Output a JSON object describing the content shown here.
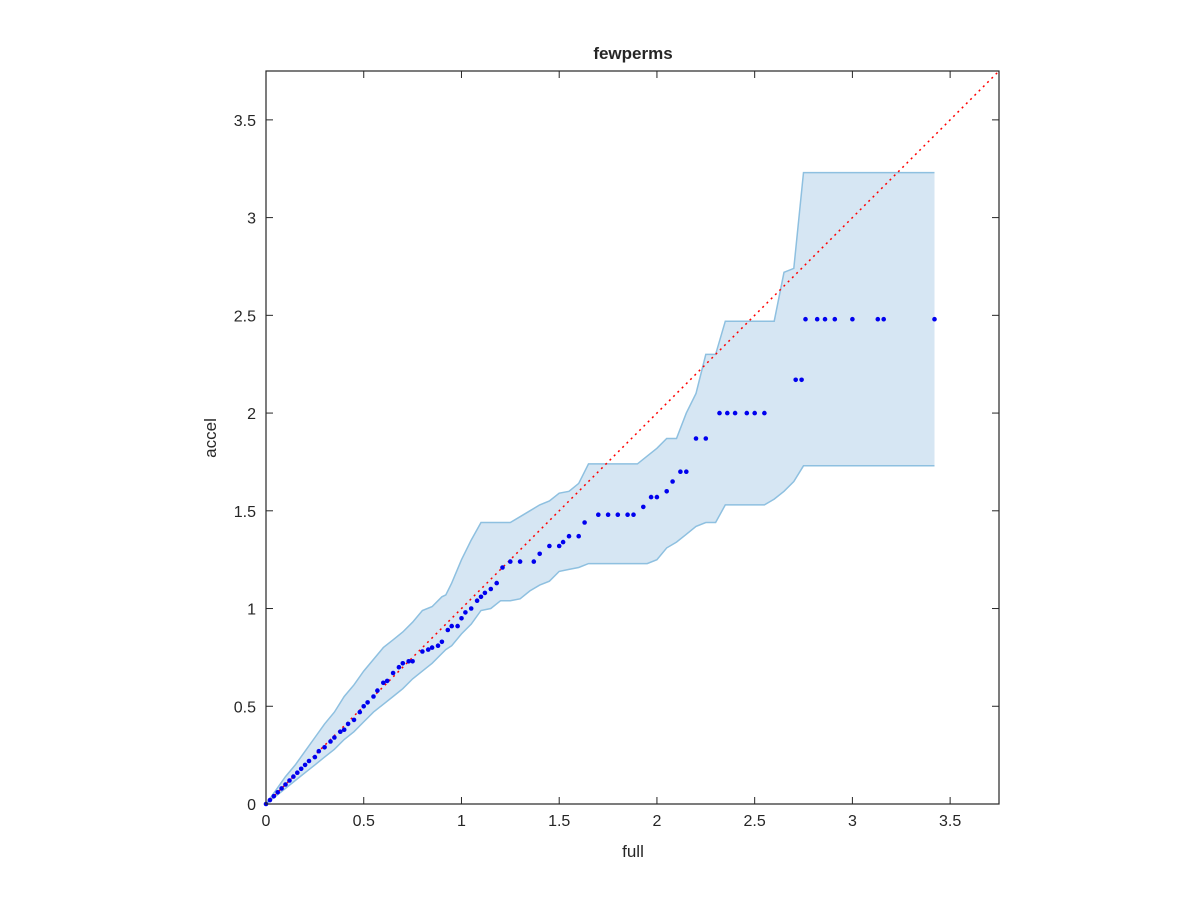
{
  "chart_data": {
    "type": "scatter",
    "title": "fewperms",
    "xlabel": "full",
    "ylabel": "accel",
    "xlim": [
      0,
      3.75
    ],
    "ylim": [
      0,
      3.75
    ],
    "xticks": [
      0,
      0.5,
      1,
      1.5,
      2,
      2.5,
      3,
      3.5
    ],
    "yticks": [
      0,
      0.5,
      1,
      1.5,
      2,
      2.5,
      3,
      3.5
    ],
    "xtick_labels": [
      "0",
      "0.5",
      "1",
      "1.5",
      "2",
      "2.5",
      "3",
      "3.5"
    ],
    "ytick_labels": [
      "0",
      "0.5",
      "1",
      "1.5",
      "2",
      "2.5",
      "3",
      "3.5"
    ],
    "grid": false,
    "colors": {
      "points": "#0000ee",
      "reference_line": "#ff0000",
      "band_fill": "#d6e6f3",
      "band_edge": "#8ec0e0",
      "axes": "#262626"
    },
    "reference_line": {
      "style": "dotted",
      "x": [
        0,
        3.75
      ],
      "y": [
        0,
        3.75
      ]
    },
    "band": {
      "x": [
        0,
        0.05,
        0.1,
        0.15,
        0.2,
        0.25,
        0.3,
        0.35,
        0.4,
        0.45,
        0.5,
        0.55,
        0.6,
        0.65,
        0.7,
        0.75,
        0.8,
        0.85,
        0.9,
        0.92,
        0.95,
        1.0,
        1.05,
        1.1,
        1.15,
        1.2,
        1.25,
        1.3,
        1.35,
        1.4,
        1.45,
        1.5,
        1.55,
        1.6,
        1.65,
        1.7,
        1.75,
        1.8,
        1.85,
        1.9,
        1.95,
        2.0,
        2.05,
        2.1,
        2.15,
        2.2,
        2.25,
        2.3,
        2.35,
        2.4,
        2.45,
        2.5,
        2.55,
        2.6,
        2.65,
        2.7,
        2.75,
        2.8,
        2.9,
        3.0,
        3.1,
        3.2,
        3.3,
        3.42
      ],
      "upper": [
        0,
        0.07,
        0.14,
        0.2,
        0.27,
        0.34,
        0.41,
        0.47,
        0.55,
        0.61,
        0.68,
        0.74,
        0.8,
        0.84,
        0.88,
        0.93,
        0.99,
        1.01,
        1.06,
        1.07,
        1.13,
        1.25,
        1.35,
        1.44,
        1.44,
        1.44,
        1.44,
        1.47,
        1.5,
        1.53,
        1.55,
        1.59,
        1.6,
        1.64,
        1.74,
        1.74,
        1.74,
        1.74,
        1.74,
        1.74,
        1.78,
        1.82,
        1.87,
        1.87,
        2.0,
        2.1,
        2.3,
        2.3,
        2.47,
        2.47,
        2.47,
        2.47,
        2.47,
        2.47,
        2.72,
        2.74,
        3.23,
        3.23,
        3.23,
        3.23,
        3.23,
        3.23,
        3.23,
        3.23
      ],
      "lower": [
        0,
        0.04,
        0.08,
        0.12,
        0.16,
        0.2,
        0.24,
        0.28,
        0.33,
        0.37,
        0.42,
        0.47,
        0.51,
        0.55,
        0.59,
        0.64,
        0.68,
        0.72,
        0.77,
        0.79,
        0.81,
        0.87,
        0.92,
        0.99,
        1.0,
        1.04,
        1.04,
        1.05,
        1.09,
        1.12,
        1.14,
        1.19,
        1.2,
        1.21,
        1.23,
        1.23,
        1.23,
        1.23,
        1.23,
        1.23,
        1.23,
        1.25,
        1.31,
        1.34,
        1.38,
        1.42,
        1.44,
        1.44,
        1.53,
        1.53,
        1.53,
        1.53,
        1.53,
        1.56,
        1.6,
        1.65,
        1.73,
        1.73,
        1.73,
        1.73,
        1.73,
        1.73,
        1.73,
        1.73
      ]
    },
    "points": {
      "x": [
        0.0,
        0.02,
        0.04,
        0.06,
        0.08,
        0.1,
        0.12,
        0.14,
        0.16,
        0.18,
        0.2,
        0.22,
        0.25,
        0.27,
        0.3,
        0.33,
        0.35,
        0.38,
        0.4,
        0.42,
        0.45,
        0.48,
        0.5,
        0.52,
        0.55,
        0.57,
        0.6,
        0.62,
        0.65,
        0.68,
        0.7,
        0.73,
        0.75,
        0.8,
        0.83,
        0.85,
        0.88,
        0.9,
        0.93,
        0.95,
        0.98,
        1.0,
        1.02,
        1.05,
        1.08,
        1.1,
        1.12,
        1.15,
        1.18,
        1.21,
        1.25,
        1.3,
        1.37,
        1.4,
        1.45,
        1.5,
        1.52,
        1.55,
        1.6,
        1.63,
        1.7,
        1.75,
        1.8,
        1.85,
        1.88,
        1.93,
        1.97,
        2.0,
        2.05,
        2.08,
        2.12,
        2.15,
        2.2,
        2.25,
        2.32,
        2.36,
        2.4,
        2.46,
        2.5,
        2.55,
        2.71,
        2.74,
        2.76,
        2.82,
        2.86,
        2.91,
        3.0,
        3.13,
        3.16,
        3.42
      ],
      "y": [
        0.0,
        0.02,
        0.04,
        0.06,
        0.08,
        0.1,
        0.12,
        0.14,
        0.16,
        0.18,
        0.2,
        0.22,
        0.24,
        0.27,
        0.29,
        0.32,
        0.34,
        0.37,
        0.38,
        0.41,
        0.43,
        0.47,
        0.5,
        0.52,
        0.55,
        0.58,
        0.62,
        0.63,
        0.67,
        0.7,
        0.72,
        0.73,
        0.73,
        0.78,
        0.79,
        0.8,
        0.81,
        0.83,
        0.89,
        0.91,
        0.91,
        0.95,
        0.98,
        1.0,
        1.04,
        1.06,
        1.08,
        1.1,
        1.13,
        1.21,
        1.24,
        1.24,
        1.24,
        1.28,
        1.32,
        1.32,
        1.34,
        1.37,
        1.37,
        1.44,
        1.48,
        1.48,
        1.48,
        1.48,
        1.48,
        1.52,
        1.57,
        1.57,
        1.6,
        1.65,
        1.7,
        1.7,
        1.87,
        1.87,
        2.0,
        2.0,
        2.0,
        2.0,
        2.0,
        2.0,
        2.17,
        2.17,
        2.48,
        2.48,
        2.48,
        2.48,
        2.48,
        2.48,
        2.48,
        2.48
      ]
    }
  }
}
